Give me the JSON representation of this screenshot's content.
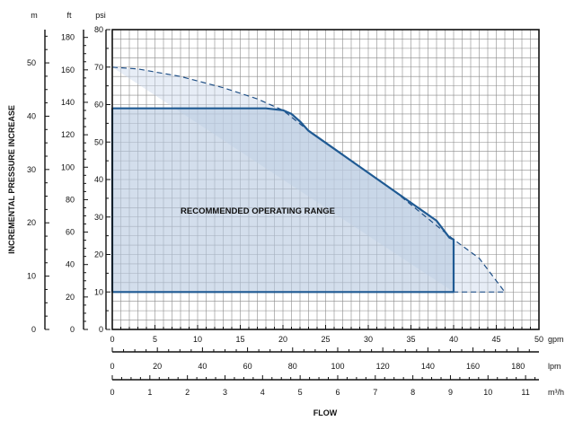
{
  "chart_data": {
    "type": "area",
    "ylabel": "INCREMENTAL PRESSURE INCREASE",
    "xlabel": "FLOW",
    "annotation": "RECOMMENDED OPERATING RANGE",
    "x_axes": [
      {
        "unit": "gpm",
        "range": [
          0,
          50
        ],
        "major": 5,
        "minor": 1,
        "labels": [
          "0",
          "5",
          "10",
          "15",
          "20",
          "25",
          "30",
          "35",
          "40",
          "45",
          "50"
        ]
      },
      {
        "unit": "lpm",
        "range": [
          0,
          189.27
        ],
        "major": 20,
        "minor": 5,
        "labels": [
          "0",
          "20",
          "40",
          "60",
          "80",
          "100",
          "120",
          "140",
          "160",
          "180"
        ]
      },
      {
        "unit": "m³/h",
        "range": [
          0,
          11.356
        ],
        "major": 1,
        "minor": 0.25,
        "labels": [
          "0",
          "1",
          "2",
          "3",
          "4",
          "5",
          "6",
          "7",
          "8",
          "9",
          "10",
          "11"
        ]
      }
    ],
    "y_axes": [
      {
        "unit": "psi",
        "range": [
          0,
          80
        ],
        "major": 10,
        "labels": [
          "0",
          "10",
          "20",
          "30",
          "40",
          "50",
          "60",
          "70",
          "80"
        ]
      },
      {
        "unit": "ft",
        "range": [
          0,
          184.8
        ],
        "major": 20,
        "labels": [
          "0",
          "20",
          "40",
          "60",
          "80",
          "100",
          "120",
          "140",
          "160",
          "180"
        ]
      },
      {
        "unit": "m",
        "range": [
          0,
          56.24
        ],
        "major": 10,
        "labels": [
          "0",
          "10",
          "20",
          "30",
          "40",
          "50"
        ]
      }
    ],
    "grid": true,
    "series": [
      {
        "style": "solid",
        "points": [
          [
            0,
            59
          ],
          [
            18,
            59
          ],
          [
            20,
            58.5
          ],
          [
            21,
            57.5
          ],
          [
            22,
            55.5
          ],
          [
            23,
            53
          ],
          [
            28,
            45
          ],
          [
            33,
            37
          ],
          [
            38,
            29
          ],
          [
            39.5,
            24.5
          ],
          [
            40,
            24
          ],
          [
            40,
            10
          ],
          [
            0,
            10
          ]
        ]
      },
      {
        "style": "dashed",
        "points": [
          [
            0,
            70
          ],
          [
            3,
            69.5
          ],
          [
            8,
            67.5
          ],
          [
            13,
            64.5
          ],
          [
            17,
            61.5
          ],
          [
            20,
            58.5
          ],
          [
            23,
            53
          ],
          [
            33,
            37
          ],
          [
            40,
            24
          ],
          [
            43,
            19
          ],
          [
            46,
            10
          ],
          [
            40,
            10
          ]
        ]
      }
    ]
  }
}
